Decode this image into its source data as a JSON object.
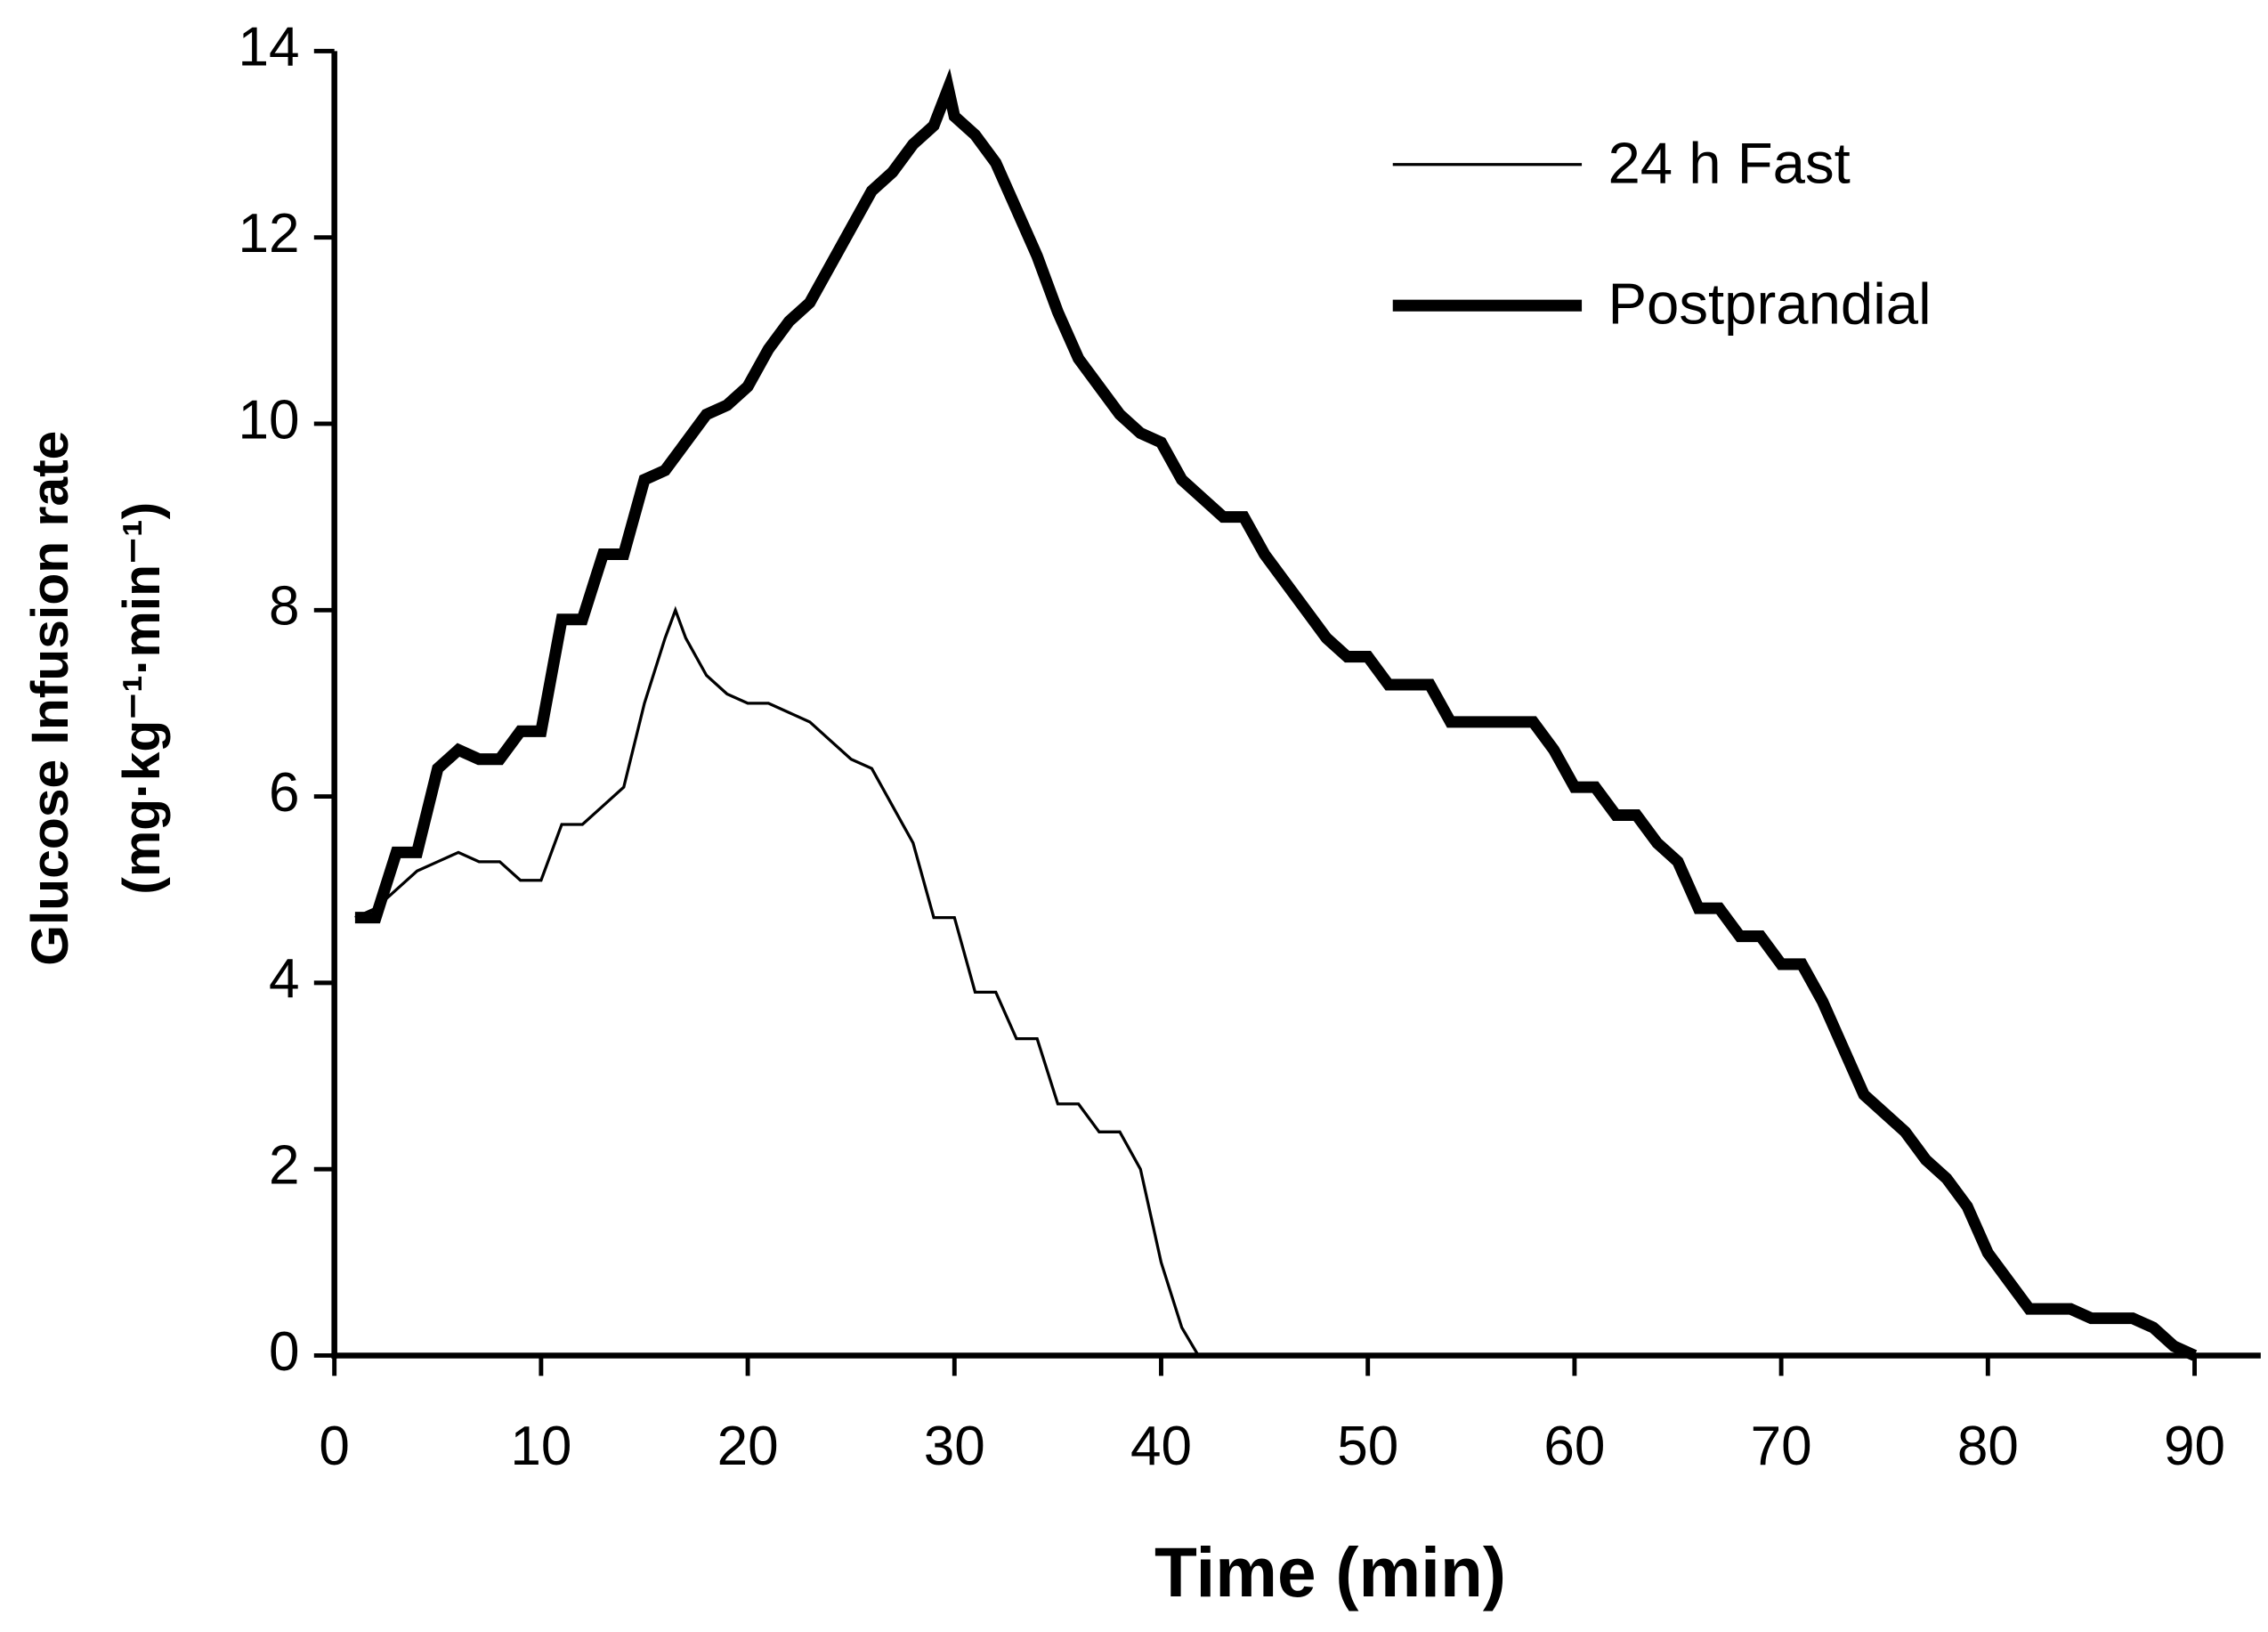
{
  "chart_data": {
    "type": "line",
    "xlabel": "Time (min)",
    "ylabel": [
      "Glucose Infusion rate",
      "(mg·kg⁻¹·min⁻¹)"
    ],
    "xlim": [
      0,
      93.2
    ],
    "xticks": [
      0,
      10,
      20,
      30,
      40,
      50,
      60,
      70,
      80,
      90
    ],
    "ylim": [
      0,
      14
    ],
    "yticks": [
      0,
      2,
      4,
      6,
      8,
      10,
      12,
      14
    ],
    "grid": false,
    "legend": "upper right",
    "series": [
      {
        "name": "24 h Fast",
        "color": "#000000",
        "width": 2,
        "x": [
          1,
          2,
          3,
          4,
          5,
          6,
          7,
          8,
          9,
          10,
          11,
          12,
          13,
          14,
          15,
          16,
          16.5,
          17,
          18,
          19,
          20,
          21,
          22,
          23,
          24,
          25,
          26,
          27,
          28,
          29,
          30,
          31,
          32,
          33,
          34,
          35,
          36,
          37,
          38,
          39,
          40,
          41,
          41.8
        ],
        "values": [
          4.7,
          4.8,
          5.0,
          5.2,
          5.3,
          5.4,
          5.3,
          5.3,
          5.1,
          5.1,
          5.7,
          5.7,
          5.9,
          6.1,
          7.0,
          7.7,
          8.0,
          7.7,
          7.3,
          7.1,
          7.0,
          7.0,
          6.9,
          6.8,
          6.6,
          6.4,
          6.3,
          5.9,
          5.5,
          4.7,
          4.7,
          3.9,
          3.9,
          3.4,
          3.4,
          2.7,
          2.7,
          2.4,
          2.4,
          2.0,
          1.0,
          0.3,
          0
        ]
      },
      {
        "name": "Postprandial",
        "color": "#000000",
        "width": 8,
        "x": [
          1,
          2,
          3,
          4,
          5,
          6,
          7,
          8,
          9,
          10,
          11,
          12,
          13,
          14,
          15,
          16,
          17,
          18,
          19,
          20,
          21,
          22,
          23,
          24,
          25,
          26,
          27,
          28,
          29,
          29.7,
          30,
          31,
          32,
          33,
          34,
          35,
          36,
          37,
          38,
          39,
          40,
          41,
          42,
          43,
          44,
          45,
          46,
          47,
          48,
          49,
          50,
          51,
          52,
          53,
          54,
          55,
          56,
          57,
          58,
          59,
          60,
          61,
          62,
          63,
          64,
          65,
          66,
          67,
          68,
          69,
          70,
          71,
          72,
          73,
          74,
          75,
          76,
          77,
          78,
          79,
          80,
          81,
          82,
          83,
          84,
          85,
          86,
          87,
          88,
          89,
          90
        ],
        "values": [
          4.7,
          4.7,
          5.4,
          5.4,
          6.3,
          6.5,
          6.4,
          6.4,
          6.7,
          6.7,
          7.9,
          7.9,
          8.6,
          8.6,
          9.4,
          9.5,
          9.8,
          10.1,
          10.2,
          10.4,
          10.8,
          11.1,
          11.3,
          11.7,
          12.1,
          12.5,
          12.7,
          13.0,
          13.2,
          13.6,
          13.3,
          13.1,
          12.8,
          12.3,
          11.8,
          11.2,
          10.7,
          10.4,
          10.1,
          9.9,
          9.8,
          9.4,
          9.2,
          9.0,
          9.0,
          8.6,
          8.3,
          8.0,
          7.7,
          7.5,
          7.5,
          7.2,
          7.2,
          7.2,
          6.8,
          6.8,
          6.8,
          6.8,
          6.8,
          6.5,
          6.1,
          6.1,
          5.8,
          5.8,
          5.5,
          5.3,
          4.8,
          4.8,
          4.5,
          4.5,
          4.2,
          4.2,
          3.8,
          3.3,
          2.8,
          2.6,
          2.4,
          2.1,
          1.9,
          1.6,
          1.1,
          0.8,
          0.5,
          0.5,
          0.5,
          0.4,
          0.4,
          0.4,
          0.3,
          0.1,
          0
        ]
      }
    ]
  }
}
